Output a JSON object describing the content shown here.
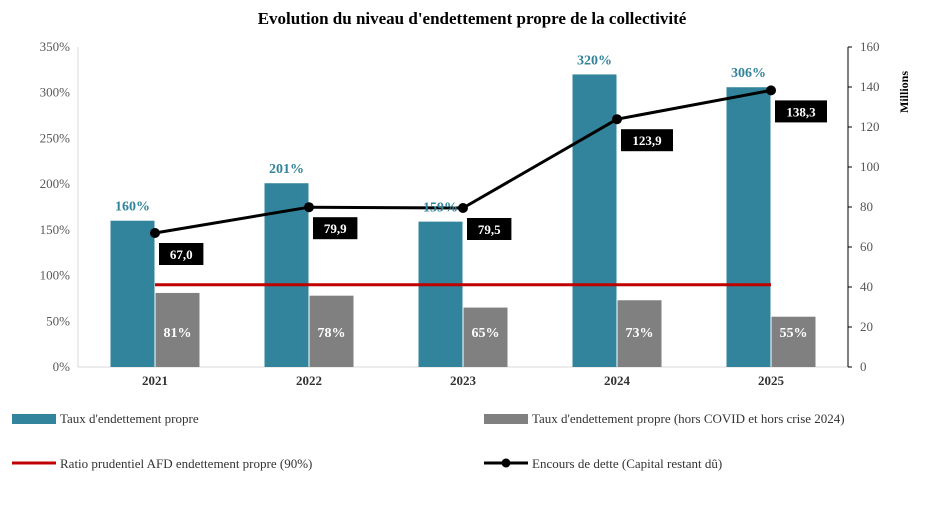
{
  "chart_data": {
    "type": "bar",
    "title": "Evolution du niveau d'endettement propre de la collectivité",
    "categories": [
      "2021",
      "2022",
      "2023",
      "2024",
      "2025"
    ],
    "y_left": {
      "ticks": [
        "0%",
        "50%",
        "100%",
        "150%",
        "200%",
        "250%",
        "300%",
        "350%"
      ],
      "ylim": [
        0,
        350
      ]
    },
    "y_right": {
      "label": "Millions",
      "ticks": [
        "0",
        "20",
        "40",
        "60",
        "80",
        "100",
        "120",
        "140",
        "160"
      ],
      "ylim": [
        0,
        160
      ]
    },
    "series": [
      {
        "name": "Taux d'endettement propre",
        "kind": "bar",
        "axis": "left",
        "color": "#31849B",
        "values": [
          160,
          201,
          159,
          320,
          306
        ],
        "labels": [
          "160%",
          "201%",
          "159%",
          "320%",
          "306%"
        ]
      },
      {
        "name": "Taux d'endettement propre (hors COVID et hors crise 2024)",
        "kind": "bar",
        "axis": "left",
        "color": "#808080",
        "values": [
          81,
          78,
          65,
          73,
          55
        ],
        "labels": [
          "81%",
          "78%",
          "65%",
          "73%",
          "55%"
        ]
      },
      {
        "name": "Ratio prudentiel AFD endettement propre (90%)",
        "kind": "line",
        "axis": "left",
        "color": "#C00000",
        "values": [
          90,
          90,
          90,
          90,
          90
        ]
      },
      {
        "name": "Encours de dette (Capital restant dû)",
        "kind": "line",
        "axis": "right",
        "color": "#000000",
        "values": [
          67.0,
          79.9,
          79.5,
          123.9,
          138.3
        ],
        "labels": [
          "67,0",
          "79,9",
          "79,5",
          "123,9",
          "138,3"
        ]
      }
    ],
    "legend_position": "bottom",
    "grid": false
  }
}
